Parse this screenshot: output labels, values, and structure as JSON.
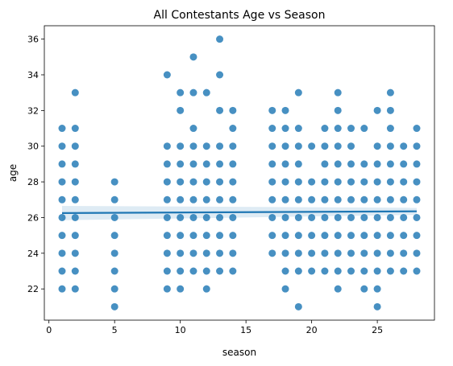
{
  "chart_data": {
    "type": "scatter",
    "title": "All Contestants Age vs Season",
    "xlabel": "season",
    "ylabel": "age",
    "xlim": [
      -0.35,
      29.35
    ],
    "ylim": [
      20.25,
      36.75
    ],
    "xticks": [
      0,
      5,
      10,
      15,
      20,
      25
    ],
    "yticks": [
      22,
      24,
      26,
      28,
      30,
      32,
      34,
      36
    ],
    "grid": false,
    "legend": "none",
    "point_color": "#1f77b4",
    "regression": {
      "x": [
        1,
        28
      ],
      "y": [
        26.25,
        26.35
      ],
      "ci_upper": [
        26.65,
        26.55
      ],
      "ci_lower": [
        25.85,
        26.15
      ]
    },
    "ages_by_season": [
      {
        "season": 1,
        "ages": [
          22,
          23,
          24,
          25,
          26,
          27,
          28,
          29,
          30,
          31
        ]
      },
      {
        "season": 2,
        "ages": [
          22,
          23,
          24,
          25,
          26,
          27,
          28,
          29,
          30,
          31,
          33
        ]
      },
      {
        "season": 5,
        "ages": [
          21,
          22,
          23,
          24,
          25,
          26,
          27,
          28
        ]
      },
      {
        "season": 9,
        "ages": [
          22,
          23,
          24,
          25,
          26,
          27,
          28,
          29,
          30,
          34
        ]
      },
      {
        "season": 10,
        "ages": [
          22,
          23,
          24,
          25,
          26,
          27,
          28,
          29,
          30,
          32,
          33
        ]
      },
      {
        "season": 11,
        "ages": [
          23,
          24,
          25,
          26,
          27,
          28,
          29,
          30,
          31,
          33,
          35
        ]
      },
      {
        "season": 12,
        "ages": [
          22,
          23,
          24,
          25,
          26,
          27,
          28,
          29,
          30,
          33
        ]
      },
      {
        "season": 13,
        "ages": [
          23,
          24,
          25,
          26,
          27,
          28,
          29,
          30,
          32,
          34,
          36
        ]
      },
      {
        "season": 14,
        "ages": [
          23,
          24,
          25,
          26,
          27,
          28,
          29,
          30,
          31,
          32
        ]
      },
      {
        "season": 17,
        "ages": [
          24,
          25,
          26,
          27,
          28,
          29,
          30,
          31,
          32
        ]
      },
      {
        "season": 18,
        "ages": [
          22,
          23,
          24,
          25,
          26,
          27,
          28,
          29,
          30,
          31,
          32
        ]
      },
      {
        "season": 19,
        "ages": [
          21,
          23,
          24,
          25,
          26,
          27,
          28,
          29,
          30,
          31,
          33
        ]
      },
      {
        "season": 20,
        "ages": [
          23,
          24,
          25,
          26,
          27,
          28,
          30
        ]
      },
      {
        "season": 21,
        "ages": [
          23,
          24,
          25,
          26,
          27,
          28,
          29,
          30,
          31
        ]
      },
      {
        "season": 22,
        "ages": [
          22,
          23,
          24,
          25,
          26,
          27,
          28,
          29,
          30,
          31,
          32,
          33
        ]
      },
      {
        "season": 23,
        "ages": [
          23,
          24,
          25,
          26,
          27,
          28,
          29,
          30,
          31
        ]
      },
      {
        "season": 24,
        "ages": [
          22,
          23,
          24,
          25,
          26,
          27,
          28,
          29,
          31
        ]
      },
      {
        "season": 25,
        "ages": [
          21,
          22,
          23,
          24,
          25,
          26,
          27,
          28,
          29,
          30,
          32
        ]
      },
      {
        "season": 26,
        "ages": [
          23,
          24,
          25,
          26,
          27,
          28,
          29,
          30,
          31,
          32,
          33
        ]
      },
      {
        "season": 27,
        "ages": [
          23,
          24,
          25,
          26,
          27,
          28,
          29,
          30
        ]
      },
      {
        "season": 28,
        "ages": [
          23,
          24,
          25,
          26,
          27,
          28,
          29,
          30,
          31
        ]
      }
    ]
  }
}
